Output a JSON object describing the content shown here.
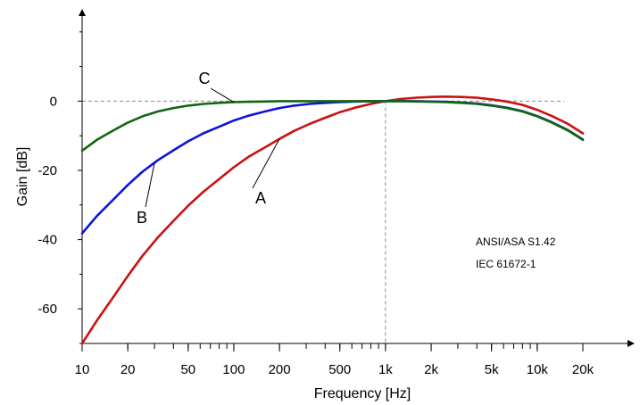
{
  "chart_data": {
    "type": "line",
    "title": "",
    "xlabel": "Frequency [Hz]",
    "ylabel": "Gain [dB]",
    "x_scale": "log",
    "xlim": [
      10,
      20000
    ],
    "ylim": [
      -70,
      22
    ],
    "x_ticks": [
      {
        "value": 10,
        "label": "10"
      },
      {
        "value": 20,
        "label": "20"
      },
      {
        "value": 50,
        "label": "50"
      },
      {
        "value": 100,
        "label": "100"
      },
      {
        "value": 200,
        "label": "200"
      },
      {
        "value": 500,
        "label": "500"
      },
      {
        "value": 1000,
        "label": "1k"
      },
      {
        "value": 2000,
        "label": "2k"
      },
      {
        "value": 5000,
        "label": "5k"
      },
      {
        "value": 10000,
        "label": "10k"
      },
      {
        "value": 20000,
        "label": "20k"
      }
    ],
    "y_ticks": [
      {
        "value": 0,
        "label": "0"
      },
      {
        "value": -20,
        "label": "-20"
      },
      {
        "value": -40,
        "label": "-40"
      },
      {
        "value": -60,
        "label": "-60"
      }
    ],
    "reference_lines": {
      "y": 0,
      "x": 1000,
      "style": "dashed"
    },
    "series": [
      {
        "name": "A",
        "color": "#cc1111",
        "x": [
          10,
          12.5,
          16,
          20,
          25,
          31.5,
          40,
          50,
          63,
          80,
          100,
          125,
          160,
          200,
          250,
          315,
          400,
          500,
          630,
          800,
          1000,
          1250,
          1600,
          2000,
          2500,
          3150,
          4000,
          5000,
          6300,
          8000,
          10000,
          12500,
          16000,
          20000
        ],
        "values": [
          -70.4,
          -63.4,
          -56.7,
          -50.5,
          -44.7,
          -39.4,
          -34.6,
          -30.2,
          -26.2,
          -22.5,
          -19.1,
          -16.1,
          -13.4,
          -10.9,
          -8.6,
          -6.6,
          -4.8,
          -3.2,
          -1.9,
          -0.8,
          0.0,
          0.6,
          1.0,
          1.2,
          1.3,
          1.2,
          1.0,
          0.5,
          -0.1,
          -1.1,
          -2.5,
          -4.3,
          -6.6,
          -9.3
        ]
      },
      {
        "name": "B",
        "color": "#1111dd",
        "x": [
          10,
          12.5,
          16,
          20,
          25,
          31.5,
          40,
          50,
          63,
          80,
          100,
          125,
          160,
          200,
          250,
          315,
          400,
          500,
          630,
          800,
          1000,
          1250,
          1600,
          2000,
          2500,
          3150,
          4000,
          5000,
          6300,
          8000,
          10000,
          12500,
          16000,
          20000
        ],
        "values": [
          -38.2,
          -33.2,
          -28.5,
          -24.2,
          -20.4,
          -17.1,
          -14.2,
          -11.6,
          -9.3,
          -7.4,
          -5.6,
          -4.2,
          -3.0,
          -2.0,
          -1.3,
          -0.8,
          -0.5,
          -0.3,
          -0.1,
          0.0,
          0.0,
          0.0,
          0.0,
          -0.1,
          -0.2,
          -0.4,
          -0.7,
          -1.2,
          -1.9,
          -2.9,
          -4.3,
          -6.1,
          -8.4,
          -11.1
        ]
      },
      {
        "name": "C",
        "color": "#116611",
        "x": [
          10,
          12.5,
          16,
          20,
          25,
          31.5,
          40,
          50,
          63,
          80,
          100,
          125,
          160,
          200,
          250,
          315,
          400,
          500,
          630,
          800,
          1000,
          1250,
          1600,
          2000,
          2500,
          3150,
          4000,
          5000,
          6300,
          8000,
          10000,
          12500,
          16000,
          20000
        ],
        "values": [
          -14.3,
          -11.2,
          -8.5,
          -6.2,
          -4.4,
          -3.0,
          -2.0,
          -1.3,
          -0.8,
          -0.5,
          -0.3,
          -0.2,
          -0.1,
          0.0,
          0.0,
          0.0,
          0.0,
          0.0,
          0.0,
          0.0,
          0.0,
          0.0,
          -0.1,
          -0.2,
          -0.3,
          -0.5,
          -0.8,
          -1.3,
          -2.0,
          -3.0,
          -4.4,
          -6.2,
          -8.5,
          -11.2
        ]
      }
    ],
    "annotations": [
      {
        "text": "A",
        "target": "A",
        "x": 200,
        "y": -10.9
      },
      {
        "text": "B",
        "target": "B",
        "x": 30,
        "y": -17.9
      },
      {
        "text": "C",
        "target": "C",
        "x": 100,
        "y": -0.3
      },
      {
        "text": "ANSI/ASA S1.42",
        "target": "none"
      },
      {
        "text": "IEC 61672-1",
        "target": "none"
      }
    ],
    "legend": "none",
    "grid": false
  }
}
